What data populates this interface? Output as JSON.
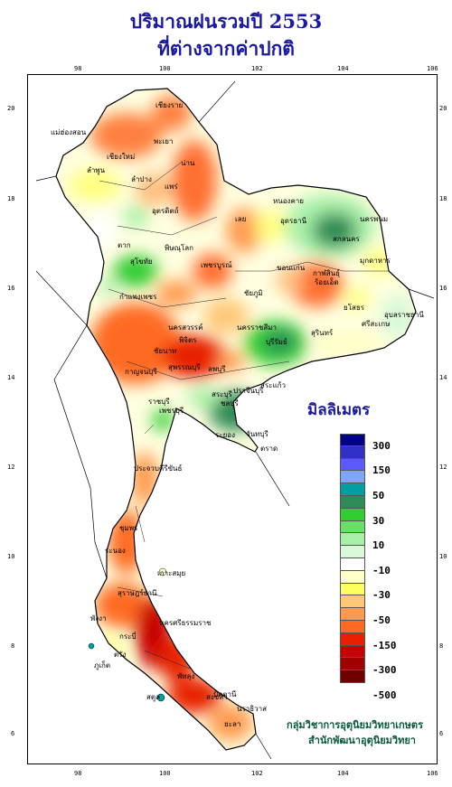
{
  "title_line1": "ปริมาณฝนรวมปี 2553",
  "title_line2": "ที่ต่างจากค่าปกติ",
  "legend": {
    "title": "มิลลิเมตร",
    "swatches": [
      "#00008b",
      "#3030c8",
      "#5a5aff",
      "#7fa6ff",
      "#00a0a0",
      "#2e8b57",
      "#33cc33",
      "#66e066",
      "#a8f0a8",
      "#d8f8d8",
      "#ffffff",
      "#ffffc8",
      "#ffff60",
      "#ffc878",
      "#ff9a50",
      "#ff6a20",
      "#e82000",
      "#c80000",
      "#a00000",
      "#700000"
    ],
    "labels": [
      "300",
      "150",
      "50",
      "30",
      "10",
      "-10",
      "-30",
      "-50",
      "-150",
      "-300",
      "-500"
    ]
  },
  "x_ticks": [
    "98",
    "100",
    "102",
    "104",
    "106"
  ],
  "y_ticks": [
    "20",
    "18",
    "16",
    "14",
    "12",
    "10",
    "8",
    "6"
  ],
  "places": [
    "เชียงราย",
    "แม่ฮ่องสอน",
    "เชียงใหม่",
    "พะเยา",
    "ลำพูน",
    "ลำปาง",
    "น่าน",
    "แพร่",
    "อุตรดิตถ์",
    "ตาก",
    "สุโขทัย",
    "พิษณุโลก",
    "เพชรบูรณ์",
    "เลย",
    "หนองคาย",
    "อุดรธานี",
    "สกลนคร",
    "นครพนม",
    "มุกดาหาร",
    "ขอนแก่น",
    "กาฬสินธุ์",
    "ชัยภูมิ",
    "ร้อยเอ็ด",
    "ยโสธร",
    "อุบลราชธานี",
    "นครราชสีมา",
    "บุรีรัมย์",
    "สุรินทร์",
    "ศรีสะเกษ",
    "กำแพงเพชร",
    "นครสวรรค์",
    "พิจิตร",
    "ชัยนาท",
    "ลพบุรี",
    "สระบุรี",
    "กาญจนบุรี",
    "สุพรรณบุรี",
    "ราชบุรี",
    "ปราจีนบุรี",
    "สระแก้ว",
    "ชลบุรี",
    "ระยอง",
    "จันทบุรี",
    "ตราด",
    "เพชรบุรี",
    "ประจวบคีรีขันธ์",
    "ชุมพร",
    "ระนอง",
    "สุราษฎร์ธานี",
    "พังงา",
    "ภูเก็ต",
    "กระบี่",
    "นครศรีธรรมราช",
    "ตรัง",
    "พัทลุง",
    "สตูล",
    "สงขลา",
    "ปัตตานี",
    "ยะลา",
    "นราธิวาส",
    "เกาะสมุย"
  ],
  "credit_line1": "กลุ่มวิชาการอุตุนิยมวิทยาเกษตร",
  "credit_line2": "สำนักพัฒนาอุตุนิยมวิทยา"
}
